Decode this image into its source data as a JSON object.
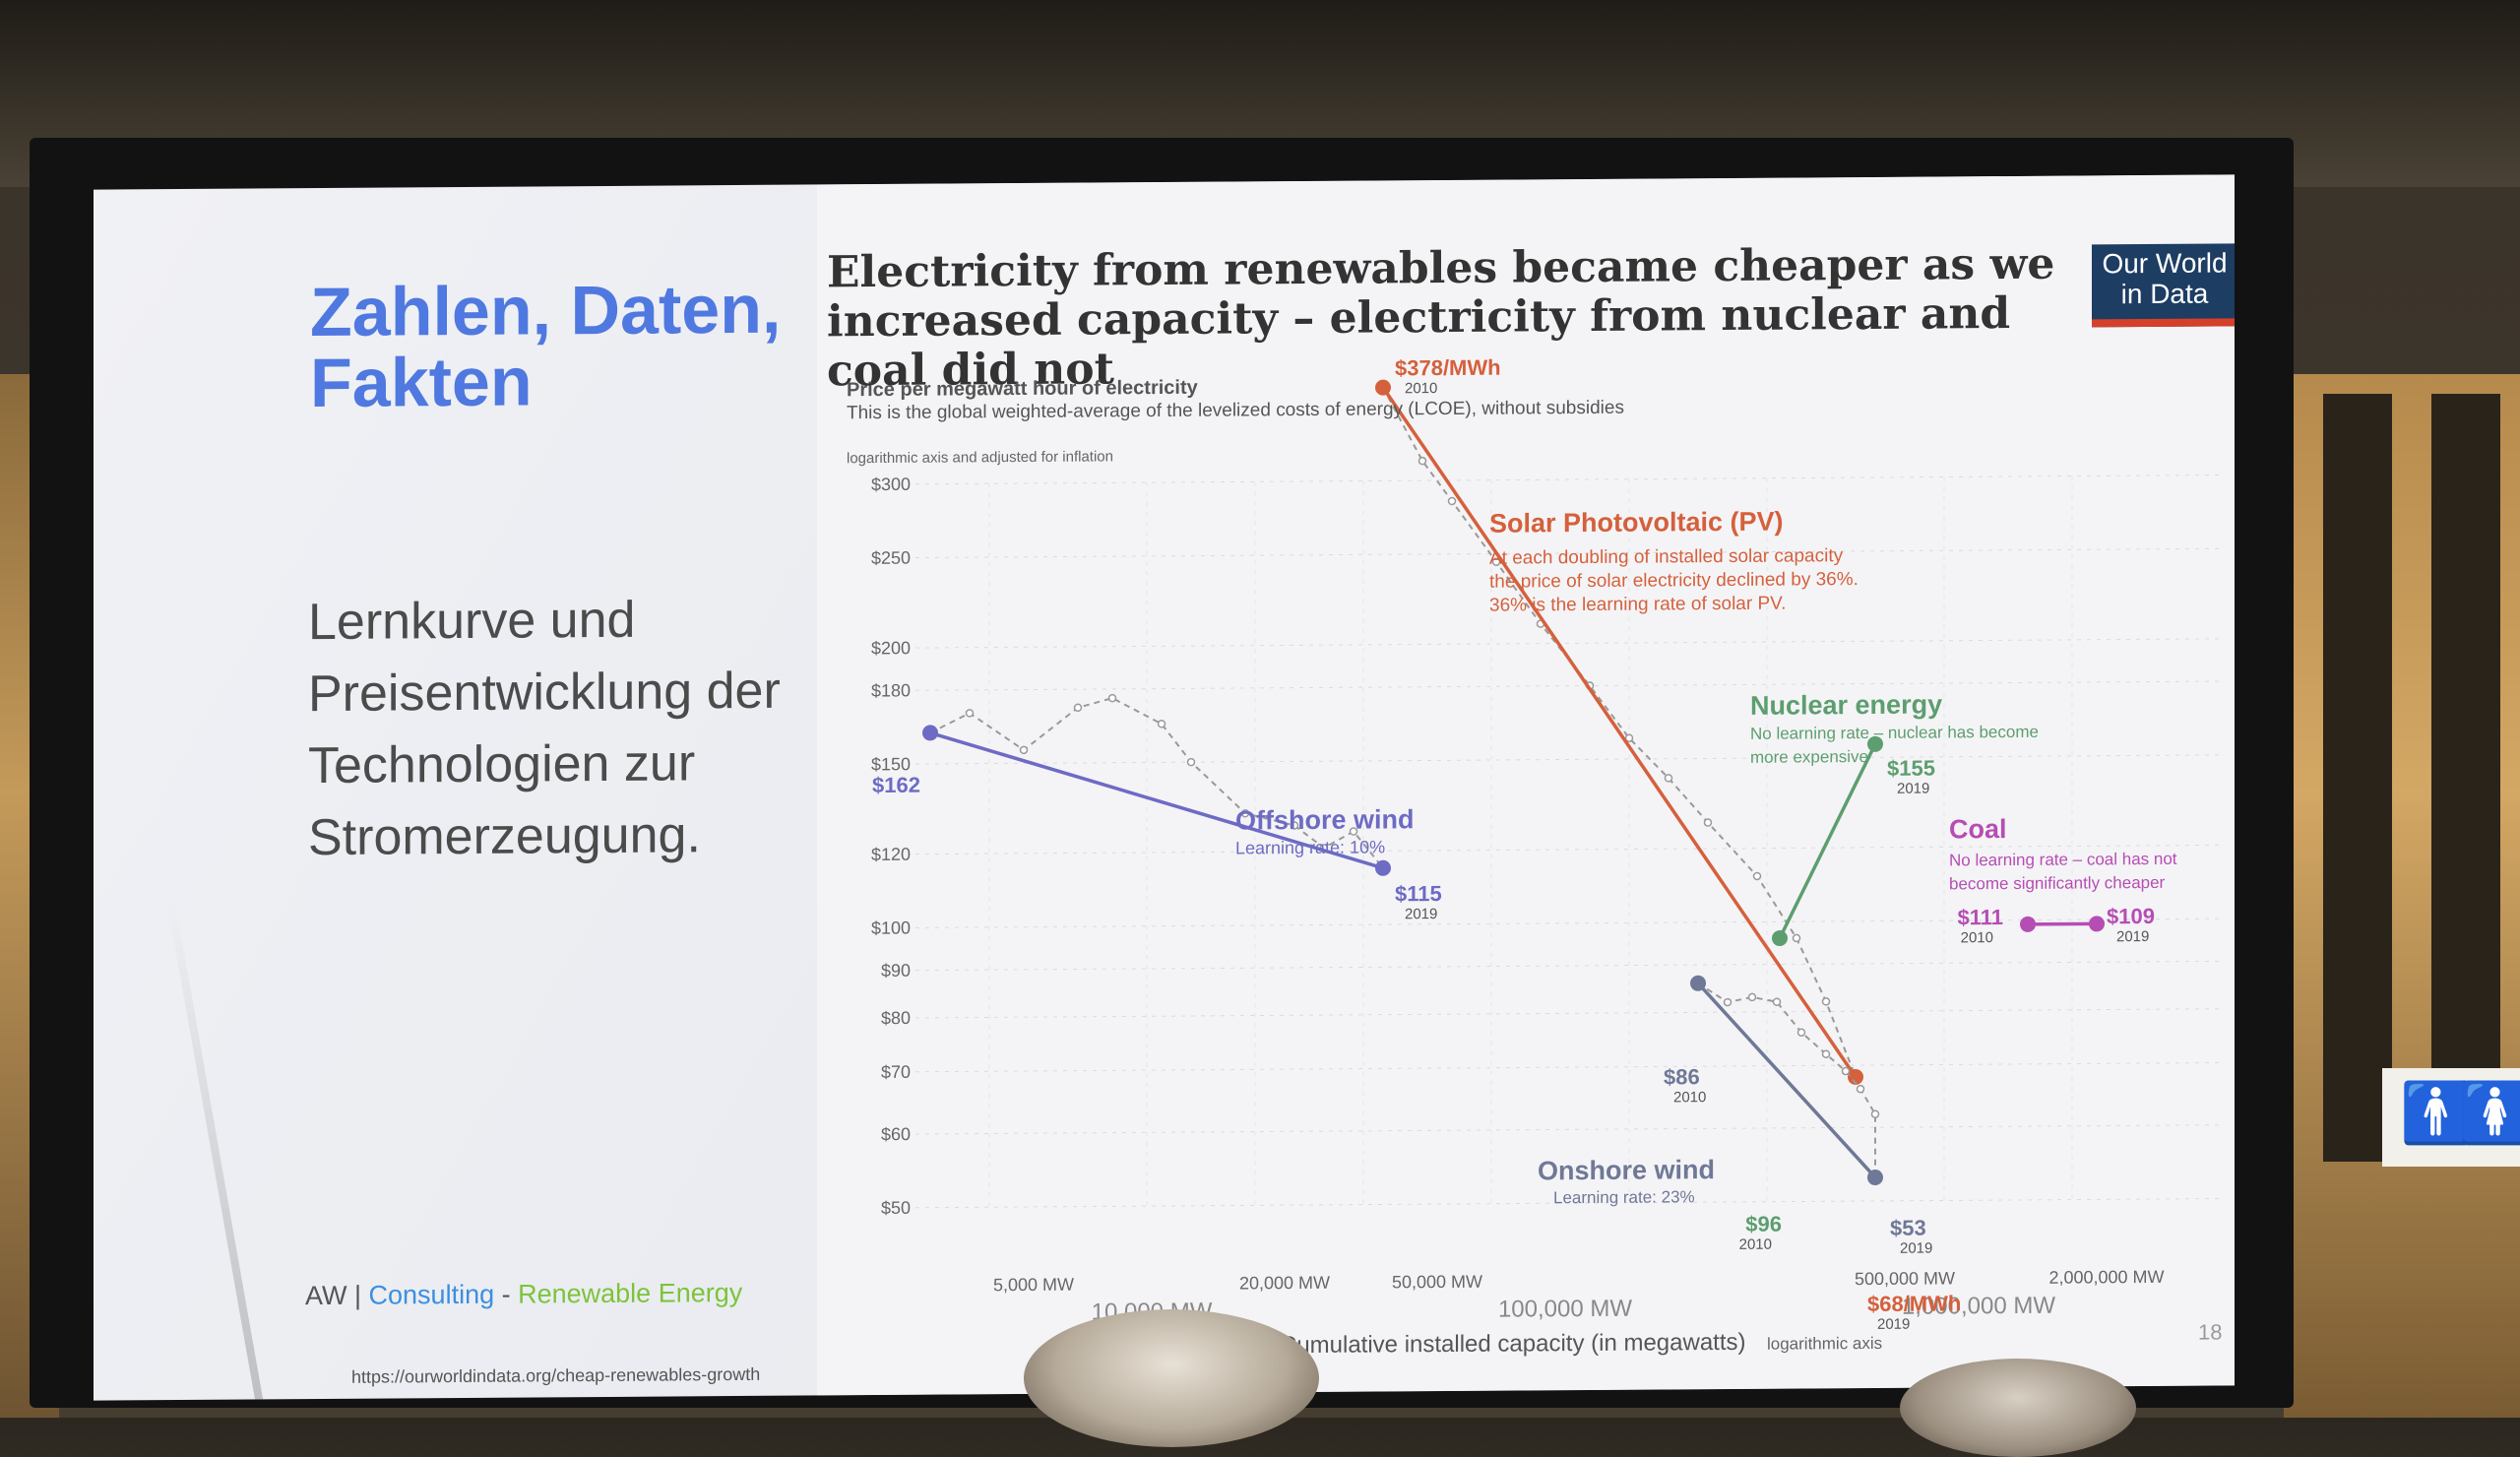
{
  "slide": {
    "heading": "Zahlen, Daten,\nFakten",
    "subtext": "Lernkurve und\nPreisentwicklung der\nTechnologien zur\nStromerzeugung.",
    "brand": {
      "aw": "AW",
      "separator1": " | ",
      "consulting": "Consulting",
      "separator2": " - ",
      "renewable": "Renewable Energy"
    },
    "url": "https://ourworldindata.org/cheap-renewables-growth",
    "page_number": "18",
    "logo": "Our World\nin Data"
  },
  "chart_data": {
    "type": "line",
    "title": "Electricity from renewables became cheaper as we increased capacity – electricity from nuclear and coal did not",
    "ylabel": "Price per megawatt hour of electricity",
    "ylabel_note": "This is the global weighted-average of the levelized costs of energy (LCOE), without subsidies",
    "ylabel_note2": "logarithmic axis and adjusted for inflation",
    "xlabel": "Cumulative installed capacity (in megawatts)",
    "xlabel_note": "logarithmic axis",
    "xscale": "log",
    "yscale": "log",
    "ylim": [
      50,
      300
    ],
    "y_ticks": [
      "$300",
      "$250",
      "$200",
      "$180",
      "$150",
      "$120",
      "$100",
      "$90",
      "$80",
      "$70",
      "$60",
      "$50"
    ],
    "y_tick_values": [
      300,
      250,
      200,
      180,
      150,
      120,
      100,
      90,
      80,
      70,
      60,
      50
    ],
    "x_ticks_small": [
      "5,000 MW",
      "20,000 MW",
      "50,000 MW",
      "500,000 MW",
      "2,000,000 MW"
    ],
    "x_ticks_large": [
      "10,000 MW",
      "100,000 MW",
      "1,000,000 MW"
    ],
    "series": [
      {
        "name": "Solar Photovoltaic (PV)",
        "color": "#d5603c",
        "note": "At each doubling of installed solar capacity\nthe price of solar electricity declined by 36%.\n36% is the learning rate of solar PV.",
        "start": {
          "value": 378,
          "label": "$378/MWh",
          "year": "2010"
        },
        "end": {
          "value": 68,
          "label": "$68/MWh",
          "year": "2019"
        }
      },
      {
        "name": "Nuclear energy",
        "color": "#5d9e6f",
        "note": "No learning rate – nuclear has become\nmore expensive",
        "start": {
          "value": 96,
          "label": "$96",
          "year": "2010"
        },
        "end": {
          "value": 155,
          "label": "$155",
          "year": "2019"
        }
      },
      {
        "name": "Coal",
        "color": "#b64db3",
        "note": "No learning rate – coal has not\nbecome significantly cheaper",
        "start": {
          "value": 111,
          "label": "$111",
          "year": "2010"
        },
        "end": {
          "value": 109,
          "label": "$109",
          "year": "2019"
        }
      },
      {
        "name": "Offshore wind",
        "color": "#6d6bc4",
        "note": "Learning rate: 10%",
        "start": {
          "value": 162,
          "label": "$162",
          "year": ""
        },
        "end": {
          "value": 115,
          "label": "$115",
          "year": "2019"
        }
      },
      {
        "name": "Onshore wind",
        "color": "#6f7896",
        "note": "Learning rate: 23%",
        "start": {
          "value": 86,
          "label": "$86",
          "year": "2010"
        },
        "end": {
          "value": 53,
          "label": "$53",
          "year": "2019"
        }
      }
    ]
  }
}
